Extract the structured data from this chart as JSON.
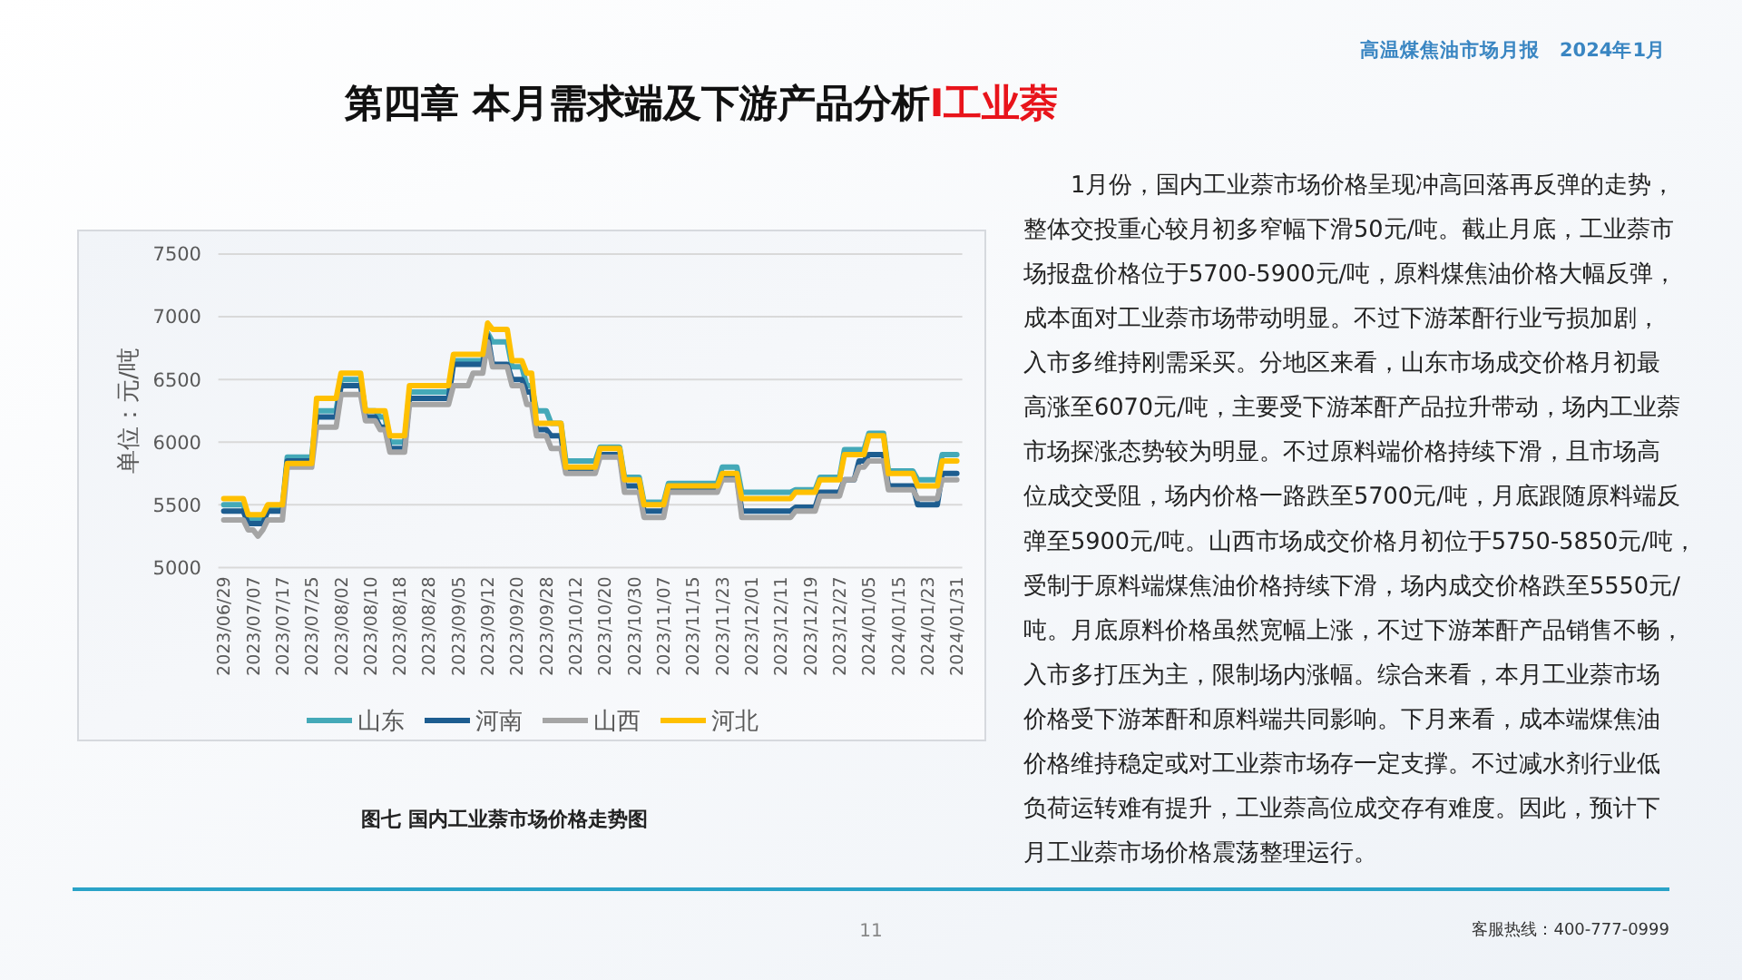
{
  "chart_data": {
    "type": "line",
    "title": "第四章 本月需求端及下游产品分析I工业萘",
    "subtitle": "图七 国内工业萘市场价格走势图",
    "ylabel": "单位：元/吨",
    "annotations": [
      "高温煤焦油市场月报　2024年1月",
      "1月份，国内工业萘市场价格呈现冲高回落再反弹的走势，整体交投重心较月初多窄幅下滑50元/吨。截止月底，工业萘市场报盘价格位于5700-5900元/吨，原料煤焦油价格大幅反弹，成本面对工业萘市场带动明显。不过下游苯酐行业亏损加剧，入市多维持刚需采买。分地区来看，山东市场成交价格月初最高涨至6070元/吨，主要受下游苯酐产品拉升带动，场内工业萘市场探涨态势较为明显。不过原料端价格持续下滑，且市场高位成交受阻，场内价格一路跌至5700元/吨，月底跟随原料端反弹至5900元/吨。山西市场成交价格月初位于5750-5850元/吨，受制于原料端煤焦油价格持续下滑，场内成交价格跌至5550元/吨。月底原料价格虽然宽幅上涨，不过下游苯酐产品销售不畅，入市多打压为主，限制场内涨幅。综合来看，本月工业萘市场价格受下游苯酐和原料端共同影响。下月来看，成本端煤焦油价格维持稳定或对工业萘市场存一定支撑。不过减水剂行业低负荷运转难有提升，工业萘高位成交存有难度。因此，预计下月工业萘市场价格震荡整理运行。",
      "客服热线：400-777-0999",
      "11"
    ],
    "categories": [
      "2023/06/29",
      null,
      null,
      null,
      null,
      null,
      "2023/07/07",
      null,
      null,
      null,
      null,
      null,
      "2023/07/17",
      null,
      null,
      null,
      null,
      null,
      "2023/07/25",
      null,
      null,
      null,
      null,
      null,
      "2023/08/02",
      null,
      null,
      null,
      null,
      null,
      "2023/08/10",
      null,
      null,
      null,
      null,
      null,
      "2023/08/18",
      null,
      null,
      null,
      null,
      null,
      "2023/08/28",
      null,
      null,
      null,
      null,
      null,
      "2023/09/05",
      null,
      null,
      null,
      null,
      null,
      "2023/09/12",
      null,
      null,
      null,
      null,
      null,
      "2023/09/20",
      null,
      null,
      null,
      null,
      null,
      "2023/09/28",
      null,
      null,
      null,
      null,
      null,
      "2023/10/12",
      null,
      null,
      null,
      null,
      null,
      "2023/10/20",
      null,
      null,
      null,
      null,
      null,
      "2023/10/30",
      null,
      null,
      null,
      null,
      null,
      "2023/11/07",
      null,
      null,
      null,
      null,
      null,
      "2023/11/15",
      null,
      null,
      null,
      null,
      null,
      "2023/11/23",
      null,
      null,
      null,
      null,
      null,
      "2023/12/01",
      null,
      null,
      null,
      null,
      null,
      "2023/12/11",
      null,
      null,
      null,
      null,
      null,
      "2023/12/19",
      null,
      null,
      null,
      null,
      null,
      "2023/12/27",
      null,
      null,
      null,
      null,
      null,
      "2024/01/05",
      null,
      null,
      null,
      null,
      null,
      "2024/01/15",
      null,
      null,
      null,
      null,
      null,
      "2024/01/23",
      null,
      null,
      null,
      null,
      null,
      "2024/01/31"
    ],
    "series": [
      {
        "name": "山东",
        "color": "#44a9b8",
        "values": [
          5500,
          5500,
          5500,
          5500,
          5500,
          5380,
          5380,
          5380,
          5380,
          5480,
          5480,
          5480,
          5480,
          5880,
          5880,
          5880,
          5880,
          5880,
          5880,
          6250,
          6250,
          6250,
          6250,
          6250,
          6500,
          6500,
          6500,
          6500,
          6500,
          6250,
          6250,
          6250,
          6200,
          6200,
          6000,
          6000,
          6000,
          6000,
          6400,
          6400,
          6400,
          6400,
          6400,
          6400,
          6400,
          6400,
          6400,
          6650,
          6650,
          6650,
          6650,
          6650,
          6650,
          6650,
          6870,
          6800,
          6800,
          6800,
          6800,
          6600,
          6600,
          6600,
          6450,
          6450,
          6250,
          6250,
          6250,
          6150,
          6150,
          6150,
          5850,
          5850,
          5850,
          5850,
          5850,
          5850,
          5850,
          5960,
          5960,
          5960,
          5960,
          5960,
          5720,
          5720,
          5720,
          5720,
          5520,
          5520,
          5520,
          5520,
          5520,
          5670,
          5670,
          5670,
          5670,
          5670,
          5670,
          5670,
          5670,
          5670,
          5670,
          5670,
          5800,
          5800,
          5800,
          5800,
          5600,
          5600,
          5600,
          5600,
          5600,
          5600,
          5600,
          5600,
          5600,
          5600,
          5600,
          5620,
          5620,
          5620,
          5620,
          5620,
          5720,
          5720,
          5720,
          5720,
          5720,
          5940,
          5940,
          5940,
          5940,
          5940,
          6070,
          6070,
          6070,
          6070,
          5770,
          5770,
          5770,
          5770,
          5770,
          5770,
          5700,
          5700,
          5700,
          5700,
          5700,
          5900,
          5900,
          5900,
          5900
        ]
      },
      {
        "name": "河南",
        "color": "#1d5d90",
        "values": [
          5450,
          5450,
          5450,
          5450,
          5450,
          5350,
          5350,
          5350,
          5350,
          5450,
          5450,
          5450,
          5450,
          5850,
          5850,
          5850,
          5850,
          5850,
          5850,
          6200,
          6200,
          6200,
          6200,
          6200,
          6450,
          6450,
          6450,
          6450,
          6450,
          6200,
          6200,
          6200,
          6120,
          6120,
          5950,
          5950,
          5950,
          5950,
          6350,
          6350,
          6350,
          6350,
          6350,
          6350,
          6350,
          6350,
          6350,
          6620,
          6620,
          6620,
          6620,
          6620,
          6620,
          6620,
          6850,
          6620,
          6620,
          6620,
          6620,
          6500,
          6500,
          6500,
          6400,
          6400,
          6100,
          6100,
          6100,
          6050,
          6050,
          6050,
          5780,
          5780,
          5780,
          5780,
          5780,
          5780,
          5780,
          5900,
          5900,
          5900,
          5900,
          5900,
          5650,
          5650,
          5650,
          5650,
          5450,
          5450,
          5450,
          5450,
          5450,
          5620,
          5620,
          5620,
          5620,
          5620,
          5620,
          5620,
          5620,
          5620,
          5620,
          5620,
          5720,
          5720,
          5720,
          5720,
          5450,
          5450,
          5450,
          5450,
          5450,
          5450,
          5450,
          5450,
          5450,
          5450,
          5450,
          5480,
          5480,
          5480,
          5480,
          5480,
          5600,
          5600,
          5600,
          5600,
          5600,
          5700,
          5700,
          5700,
          5850,
          5850,
          5900,
          5900,
          5900,
          5900,
          5650,
          5650,
          5650,
          5650,
          5650,
          5650,
          5500,
          5500,
          5500,
          5500,
          5500,
          5750,
          5750,
          5750,
          5750
        ]
      },
      {
        "name": "山西",
        "color": "#a5a5a5",
        "values": [
          5380,
          5380,
          5380,
          5380,
          5380,
          5300,
          5300,
          5250,
          5300,
          5380,
          5380,
          5380,
          5380,
          5800,
          5800,
          5800,
          5800,
          5800,
          5800,
          6120,
          6120,
          6120,
          6120,
          6120,
          6380,
          6380,
          6380,
          6380,
          6380,
          6170,
          6170,
          6170,
          6100,
          6100,
          5920,
          5920,
          5920,
          5920,
          6300,
          6300,
          6300,
          6300,
          6300,
          6300,
          6300,
          6300,
          6300,
          6450,
          6450,
          6450,
          6450,
          6550,
          6550,
          6550,
          6800,
          6600,
          6600,
          6600,
          6600,
          6450,
          6450,
          6450,
          6300,
          6300,
          6050,
          6050,
          6050,
          5950,
          5950,
          5950,
          5750,
          5750,
          5750,
          5750,
          5750,
          5750,
          5750,
          5880,
          5880,
          5880,
          5880,
          5880,
          5600,
          5600,
          5600,
          5600,
          5400,
          5400,
          5400,
          5400,
          5400,
          5600,
          5600,
          5600,
          5600,
          5600,
          5600,
          5600,
          5600,
          5600,
          5600,
          5600,
          5700,
          5700,
          5700,
          5700,
          5400,
          5400,
          5400,
          5400,
          5400,
          5400,
          5400,
          5400,
          5400,
          5400,
          5400,
          5450,
          5450,
          5450,
          5450,
          5450,
          5570,
          5570,
          5570,
          5570,
          5570,
          5700,
          5700,
          5700,
          5800,
          5800,
          5850,
          5850,
          5850,
          5850,
          5620,
          5620,
          5620,
          5620,
          5620,
          5620,
          5550,
          5550,
          5550,
          5550,
          5550,
          5700,
          5700,
          5700,
          5700
        ]
      },
      {
        "name": "河北",
        "color": "#ffc000",
        "values": [
          5550,
          5550,
          5550,
          5550,
          5550,
          5420,
          5420,
          5420,
          5420,
          5500,
          5500,
          5500,
          5500,
          5830,
          5830,
          5830,
          5830,
          5830,
          5830,
          6350,
          6350,
          6350,
          6350,
          6350,
          6550,
          6550,
          6550,
          6550,
          6550,
          6250,
          6250,
          6250,
          6250,
          6250,
          6050,
          6050,
          6050,
          6050,
          6450,
          6450,
          6450,
          6450,
          6450,
          6450,
          6450,
          6450,
          6450,
          6700,
          6700,
          6700,
          6700,
          6700,
          6700,
          6700,
          6950,
          6900,
          6900,
          6900,
          6900,
          6650,
          6650,
          6650,
          6550,
          6550,
          6150,
          6150,
          6150,
          6150,
          6150,
          6150,
          5800,
          5800,
          5800,
          5800,
          5800,
          5800,
          5800,
          5950,
          5950,
          5950,
          5950,
          5950,
          5700,
          5700,
          5700,
          5700,
          5500,
          5500,
          5500,
          5500,
          5500,
          5650,
          5650,
          5650,
          5650,
          5650,
          5650,
          5650,
          5650,
          5650,
          5650,
          5650,
          5750,
          5750,
          5750,
          5750,
          5550,
          5550,
          5550,
          5550,
          5550,
          5550,
          5550,
          5550,
          5550,
          5550,
          5550,
          5600,
          5600,
          5600,
          5600,
          5600,
          5700,
          5700,
          5700,
          5700,
          5700,
          5900,
          5900,
          5900,
          5900,
          5900,
          6050,
          6050,
          6050,
          6050,
          5750,
          5750,
          5750,
          5750,
          5750,
          5750,
          5650,
          5650,
          5650,
          5650,
          5650,
          5850,
          5850,
          5850,
          5850
        ]
      }
    ],
    "ylim": [
      5000,
      7500
    ],
    "yticks": [
      5000,
      5500,
      6000,
      6500,
      7000,
      7500
    ],
    "grid": "y",
    "legend": "bottom"
  }
}
